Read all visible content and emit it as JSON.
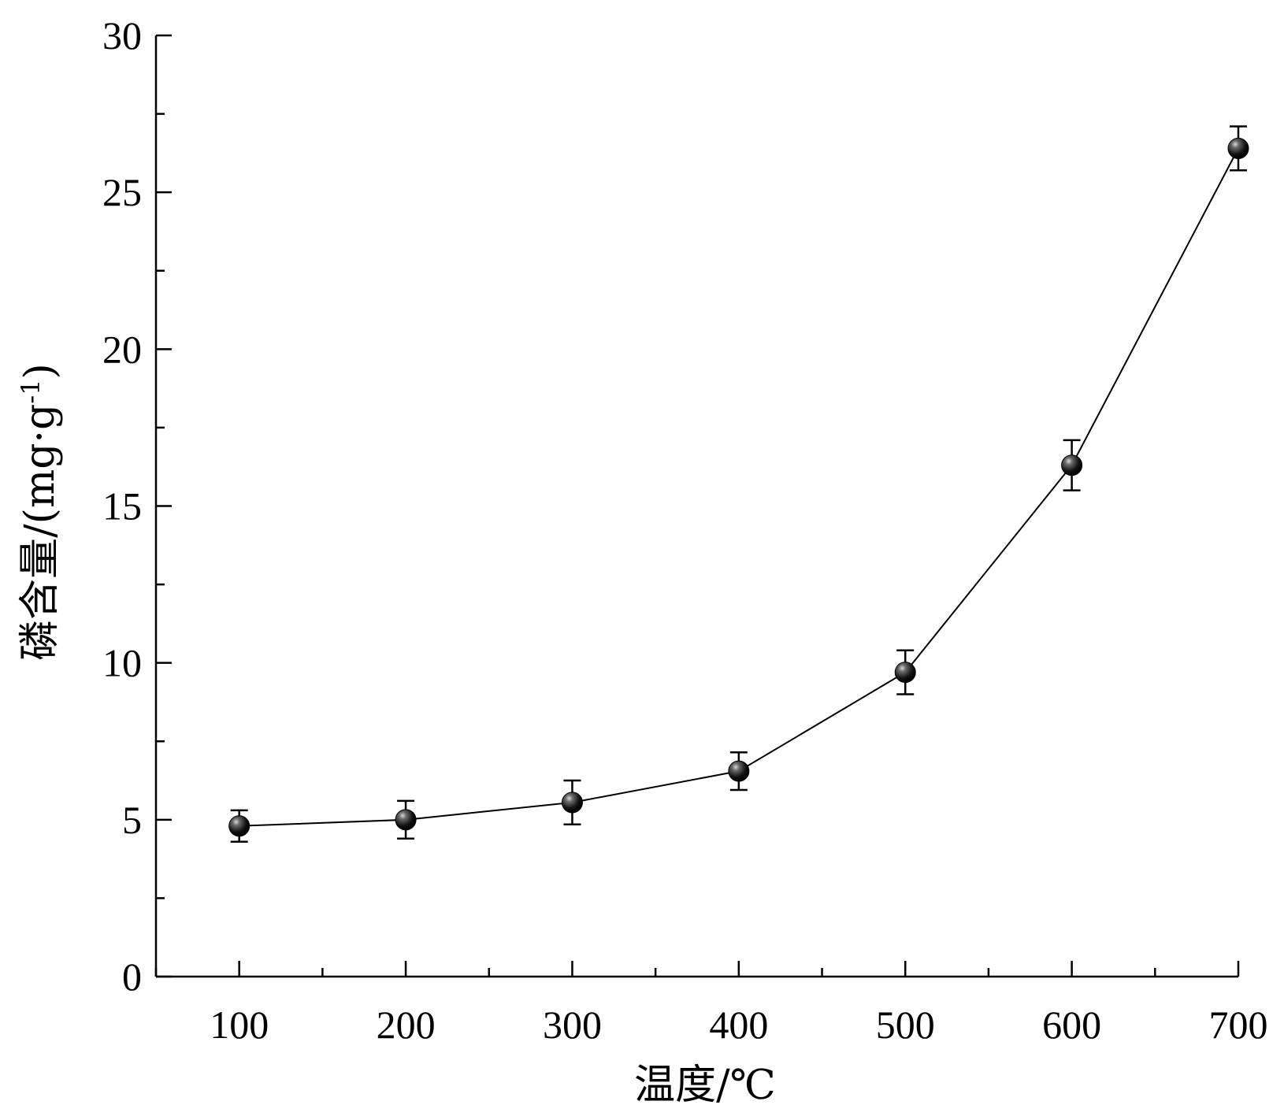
{
  "chart_data": {
    "type": "line",
    "title": "",
    "xlabel": "温度/℃",
    "ylabel": "磷含量/(mg·g",
    "ylabel_superscript": "-1",
    "ylabel_close": ")",
    "xlim": [
      50,
      700
    ],
    "ylim": [
      0,
      30
    ],
    "x_major_ticks": [
      100,
      200,
      300,
      400,
      500,
      600,
      700
    ],
    "x_minor_ticks": [
      50,
      150,
      250,
      350,
      450,
      550,
      650
    ],
    "y_major_ticks": [
      0,
      5,
      10,
      15,
      20,
      25,
      30
    ],
    "y_minor_ticks": [
      2.5,
      7.5,
      12.5,
      17.5,
      22.5,
      27.5
    ],
    "grid": false,
    "x": [
      100,
      200,
      300,
      400,
      500,
      600,
      700
    ],
    "series": [
      {
        "values": [
          4.8,
          5.0,
          5.55,
          6.55,
          9.7,
          16.3,
          26.4
        ],
        "error": [
          0.5,
          0.6,
          0.7,
          0.6,
          0.7,
          0.8,
          0.7
        ],
        "marker": "sphere",
        "color": "#000000"
      }
    ]
  }
}
